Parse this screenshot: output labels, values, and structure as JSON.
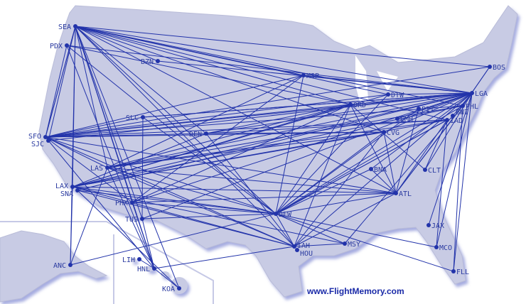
{
  "watermark": "www.FlightMemory.com",
  "colors": {
    "land": "#c8cbe4",
    "route": "#2233aa",
    "border": "#9a9cb4",
    "shadow": "#8f97d8"
  },
  "airports": [
    "SEA",
    "PDX",
    "BZN",
    "MSP",
    "DTW",
    "ORD",
    "PIT",
    "CMH",
    "CVG",
    "LGA",
    "PHL",
    "BWI",
    "IAD",
    "BOS",
    "SLC",
    "DEN",
    "SFO",
    "SJC",
    "LAS",
    "LAX",
    "SNA",
    "PHX",
    "TUS",
    "DFW",
    "BNA",
    "CLT",
    "ATL",
    "JAX",
    "MCO",
    "FLL",
    "MSY",
    "IAH",
    "HOU",
    "ANC",
    "LIH",
    "HNL",
    "KOA"
  ],
  "routes": [
    [
      "SEA",
      "LGA"
    ],
    [
      "SEA",
      "PHL"
    ],
    [
      "SEA",
      "BOS"
    ],
    [
      "SEA",
      "MSP"
    ],
    [
      "SEA",
      "ORD"
    ],
    [
      "SEA",
      "DTW"
    ],
    [
      "SEA",
      "IAD"
    ],
    [
      "SEA",
      "DFW"
    ],
    [
      "SEA",
      "IAH"
    ],
    [
      "SEA",
      "PHX"
    ],
    [
      "SEA",
      "TUS"
    ],
    [
      "SEA",
      "LAS"
    ],
    [
      "SEA",
      "LAX"
    ],
    [
      "SEA",
      "SFO"
    ],
    [
      "SEA",
      "SJC"
    ],
    [
      "SEA",
      "DEN"
    ],
    [
      "SEA",
      "ATL"
    ],
    [
      "SEA",
      "HNL"
    ],
    [
      "SEA",
      "KOA"
    ],
    [
      "SEA",
      "ANC"
    ],
    [
      "SEA",
      "CVG"
    ],
    [
      "PDX",
      "SFO"
    ],
    [
      "PDX",
      "LGA"
    ],
    [
      "PDX",
      "DFW"
    ],
    [
      "PDX",
      "HNL"
    ],
    [
      "PDX",
      "ORD"
    ],
    [
      "BZN",
      "LGA"
    ],
    [
      "BZN",
      "SEA"
    ],
    [
      "MSP",
      "LGA"
    ],
    [
      "MSP",
      "LAS"
    ],
    [
      "MSP",
      "PHX"
    ],
    [
      "MSP",
      "DFW"
    ],
    [
      "MSP",
      "SFO"
    ],
    [
      "DTW",
      "LGA"
    ],
    [
      "DTW",
      "LAX"
    ],
    [
      "DTW",
      "SFO"
    ],
    [
      "ORD",
      "LGA"
    ],
    [
      "ORD",
      "SFO"
    ],
    [
      "ORD",
      "LAX"
    ],
    [
      "ORD",
      "DFW"
    ],
    [
      "ORD",
      "ATL"
    ],
    [
      "ORD",
      "LAS"
    ],
    [
      "ORD",
      "DEN"
    ],
    [
      "ORD",
      "CLT"
    ],
    [
      "ORD",
      "PHX"
    ],
    [
      "LGA",
      "SFO"
    ],
    [
      "LGA",
      "LAX"
    ],
    [
      "LGA",
      "SJC"
    ],
    [
      "LGA",
      "LAS"
    ],
    [
      "LGA",
      "DEN"
    ],
    [
      "LGA",
      "SLC"
    ],
    [
      "LGA",
      "DFW"
    ],
    [
      "LGA",
      "IAH"
    ],
    [
      "LGA",
      "ATL"
    ],
    [
      "LGA",
      "MCO"
    ],
    [
      "LGA",
      "FLL"
    ],
    [
      "LGA",
      "JAX"
    ],
    [
      "LGA",
      "CLT"
    ],
    [
      "LGA",
      "BNA"
    ],
    [
      "LGA",
      "CVG"
    ],
    [
      "LGA",
      "CMH"
    ],
    [
      "LGA",
      "PHX"
    ],
    [
      "LGA",
      "MSY"
    ],
    [
      "LGA",
      "SNA"
    ],
    [
      "LGA",
      "TUS"
    ],
    [
      "PHL",
      "SFO"
    ],
    [
      "PHL",
      "LAX"
    ],
    [
      "PHL",
      "LAS"
    ],
    [
      "PHL",
      "DFW"
    ],
    [
      "PHL",
      "FLL"
    ],
    [
      "PHL",
      "ATL"
    ],
    [
      "PHL",
      "BOS"
    ],
    [
      "IAD",
      "SFO"
    ],
    [
      "IAD",
      "LAX"
    ],
    [
      "IAD",
      "DFW"
    ],
    [
      "IAD",
      "ATL"
    ],
    [
      "IAD",
      "CLT"
    ],
    [
      "IAD",
      "DEN"
    ],
    [
      "IAD",
      "MCO"
    ],
    [
      "IAD",
      "LAS"
    ],
    [
      "BOS",
      "PHL"
    ],
    [
      "BOS",
      "SFO"
    ],
    [
      "SLC",
      "SFO"
    ],
    [
      "SLC",
      "DFW"
    ],
    [
      "SLC",
      "TUS"
    ],
    [
      "SLC",
      "LGA"
    ],
    [
      "DEN",
      "SFO"
    ],
    [
      "DEN",
      "CVG"
    ],
    [
      "DEN",
      "IAH"
    ],
    [
      "SFO",
      "DFW"
    ],
    [
      "SFO",
      "IAH"
    ],
    [
      "SFO",
      "ATL"
    ],
    [
      "SFO",
      "CVG"
    ],
    [
      "SFO",
      "HNL"
    ],
    [
      "SFO",
      "PHX"
    ],
    [
      "SFO",
      "LAS"
    ],
    [
      "SFO",
      "SEA"
    ],
    [
      "LAS",
      "DFW"
    ],
    [
      "LAS",
      "ATL"
    ],
    [
      "LAS",
      "CVG"
    ],
    [
      "LAS",
      "IAH"
    ],
    [
      "LAS",
      "ANC"
    ],
    [
      "LAS",
      "HNL"
    ],
    [
      "LAX",
      "DFW"
    ],
    [
      "LAX",
      "ATL"
    ],
    [
      "LAX",
      "IAH"
    ],
    [
      "LAX",
      "MSY"
    ],
    [
      "LAX",
      "ANC"
    ],
    [
      "LAX",
      "DEN"
    ],
    [
      "LAX",
      "CVG"
    ],
    [
      "SNA",
      "DFW"
    ],
    [
      "SNA",
      "IAH"
    ],
    [
      "SNA",
      "KOA"
    ],
    [
      "PHX",
      "DFW"
    ],
    [
      "PHX",
      "ATL"
    ],
    [
      "PHX",
      "HNL"
    ],
    [
      "TUS",
      "DFW"
    ],
    [
      "TUS",
      "HNL"
    ],
    [
      "DFW",
      "ATL"
    ],
    [
      "DFW",
      "MCO"
    ],
    [
      "DFW",
      "FLL"
    ],
    [
      "DFW",
      "MSY"
    ],
    [
      "DFW",
      "IAH"
    ],
    [
      "DFW",
      "BNA"
    ],
    [
      "DFW",
      "CVG"
    ],
    [
      "DFW",
      "PIT"
    ],
    [
      "DFW",
      "IAD"
    ],
    [
      "DFW",
      "DTW"
    ],
    [
      "DFW",
      "ANC"
    ],
    [
      "IAH",
      "ATL"
    ],
    [
      "IAH",
      "MSY"
    ],
    [
      "IAH",
      "HNL"
    ],
    [
      "IAH",
      "CVG"
    ],
    [
      "IAH",
      "ORD"
    ],
    [
      "ATL",
      "BNA"
    ],
    [
      "ATL",
      "PIT"
    ],
    [
      "ATL",
      "CVG"
    ],
    [
      "HNL",
      "KOA"
    ],
    [
      "HNL",
      "LIH"
    ]
  ]
}
